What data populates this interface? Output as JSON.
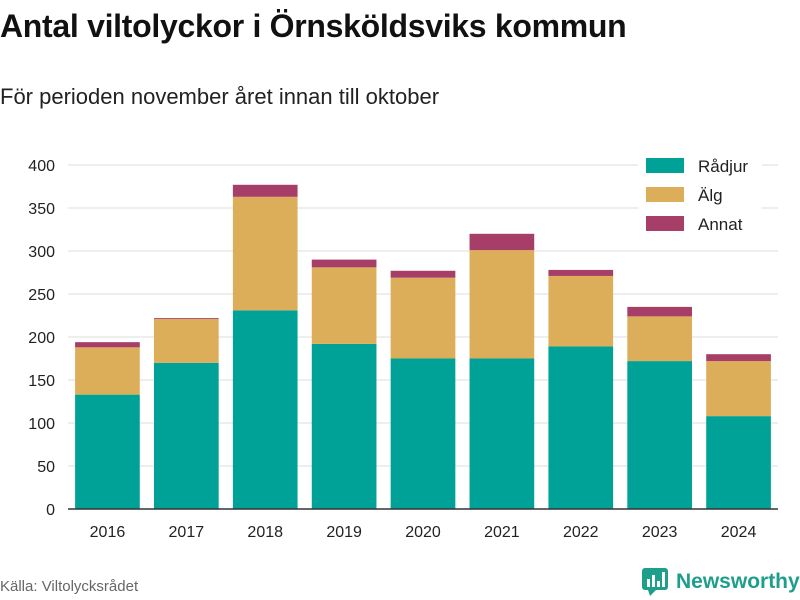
{
  "title": "Antal viltolyckor i Örnsköldsviks kommun",
  "subtitle": "För perioden november året innan till oktober",
  "source": "Källa: Viltolycksrådet",
  "brand": "Newsworthy",
  "colors": {
    "radjur": "#00a298",
    "alg": "#dcae5a",
    "annat": "#a63e67",
    "brand": "#1f9e8c"
  },
  "chart_data": {
    "type": "bar",
    "stacked": true,
    "categories": [
      "2016",
      "2017",
      "2018",
      "2019",
      "2020",
      "2021",
      "2022",
      "2023",
      "2024"
    ],
    "series": [
      {
        "name": "Rådjur",
        "color": "#00a298",
        "values": [
          133,
          170,
          231,
          192,
          175,
          175,
          189,
          172,
          108
        ]
      },
      {
        "name": "Älg",
        "color": "#dcae5a",
        "values": [
          55,
          51,
          132,
          89,
          94,
          126,
          82,
          52,
          64
        ]
      },
      {
        "name": "Annat",
        "color": "#a63e67",
        "values": [
          6,
          1,
          14,
          9,
          8,
          19,
          7,
          11,
          8
        ]
      }
    ],
    "ylim": [
      0,
      400
    ],
    "yticks": [
      0,
      50,
      100,
      150,
      200,
      250,
      300,
      350,
      400
    ],
    "grid": true,
    "legend": "top-right"
  }
}
